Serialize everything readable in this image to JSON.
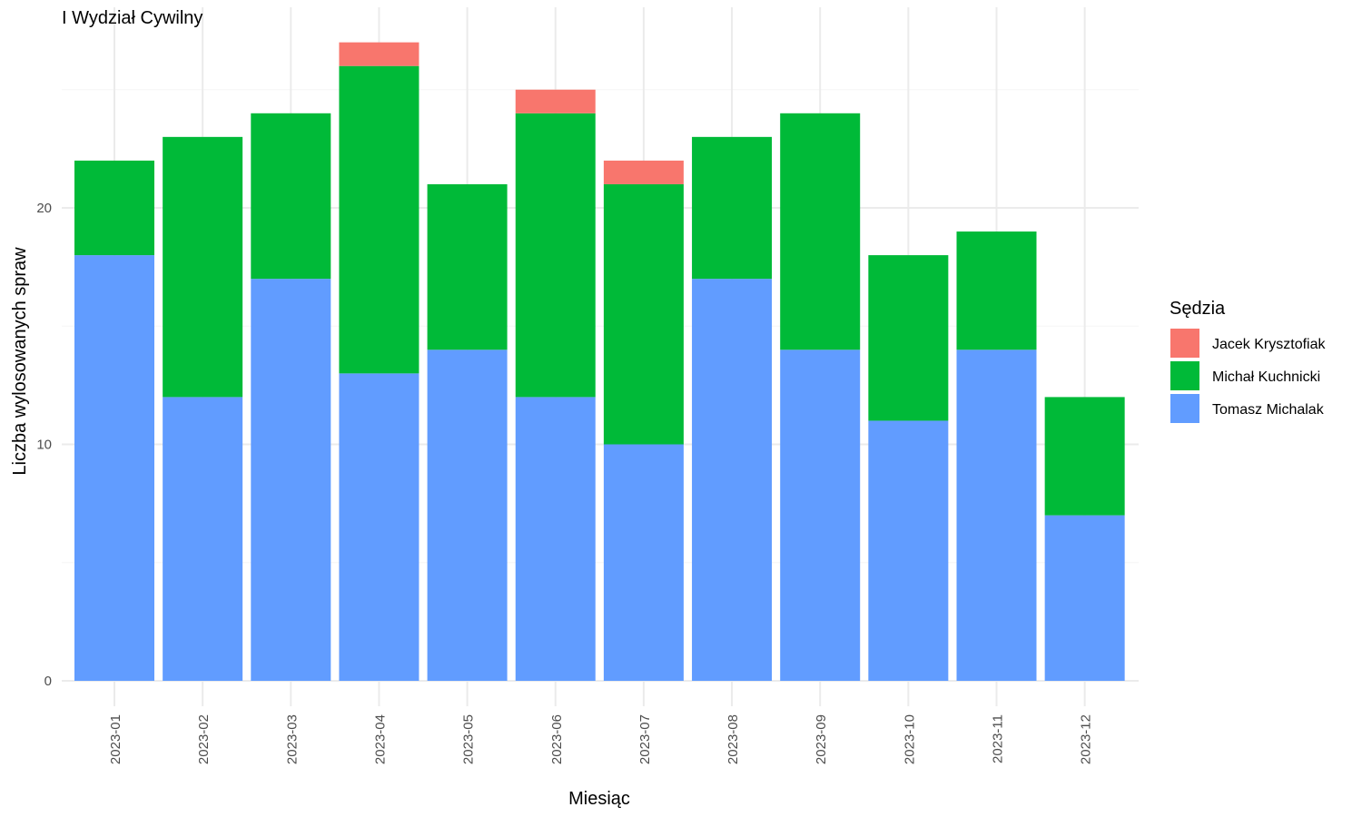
{
  "chart_data": {
    "type": "bar",
    "stacked": true,
    "title": "I Wydział Cywilny",
    "xlabel": "Miesiąc",
    "ylabel": "Liczba wylosowanych spraw",
    "categories": [
      "2023-01",
      "2023-02",
      "2023-03",
      "2023-04",
      "2023-05",
      "2023-06",
      "2023-07",
      "2023-08",
      "2023-09",
      "2023-10",
      "2023-11",
      "2023-12"
    ],
    "ylim": [
      0,
      27
    ],
    "yticks": [
      0,
      10,
      20
    ],
    "grid": true,
    "legend": {
      "title": "Sędzia",
      "position": "right"
    },
    "series": [
      {
        "name": "Tomasz Michalak",
        "color": "#619CFF",
        "values": [
          18,
          12,
          17,
          13,
          14,
          12,
          10,
          17,
          14,
          11,
          14,
          7
        ]
      },
      {
        "name": "Michał Kuchnicki",
        "color": "#00BA38",
        "values": [
          4,
          11,
          7,
          13,
          7,
          12,
          11,
          6,
          10,
          7,
          5,
          5
        ]
      },
      {
        "name": "Jacek Krysztofiak",
        "color": "#F8766D",
        "values": [
          0,
          0,
          0,
          1,
          0,
          1,
          1,
          0,
          0,
          0,
          0,
          0
        ]
      }
    ],
    "legend_order": [
      "Jacek Krysztofiak",
      "Michał Kuchnicki",
      "Tomasz Michalak"
    ]
  }
}
